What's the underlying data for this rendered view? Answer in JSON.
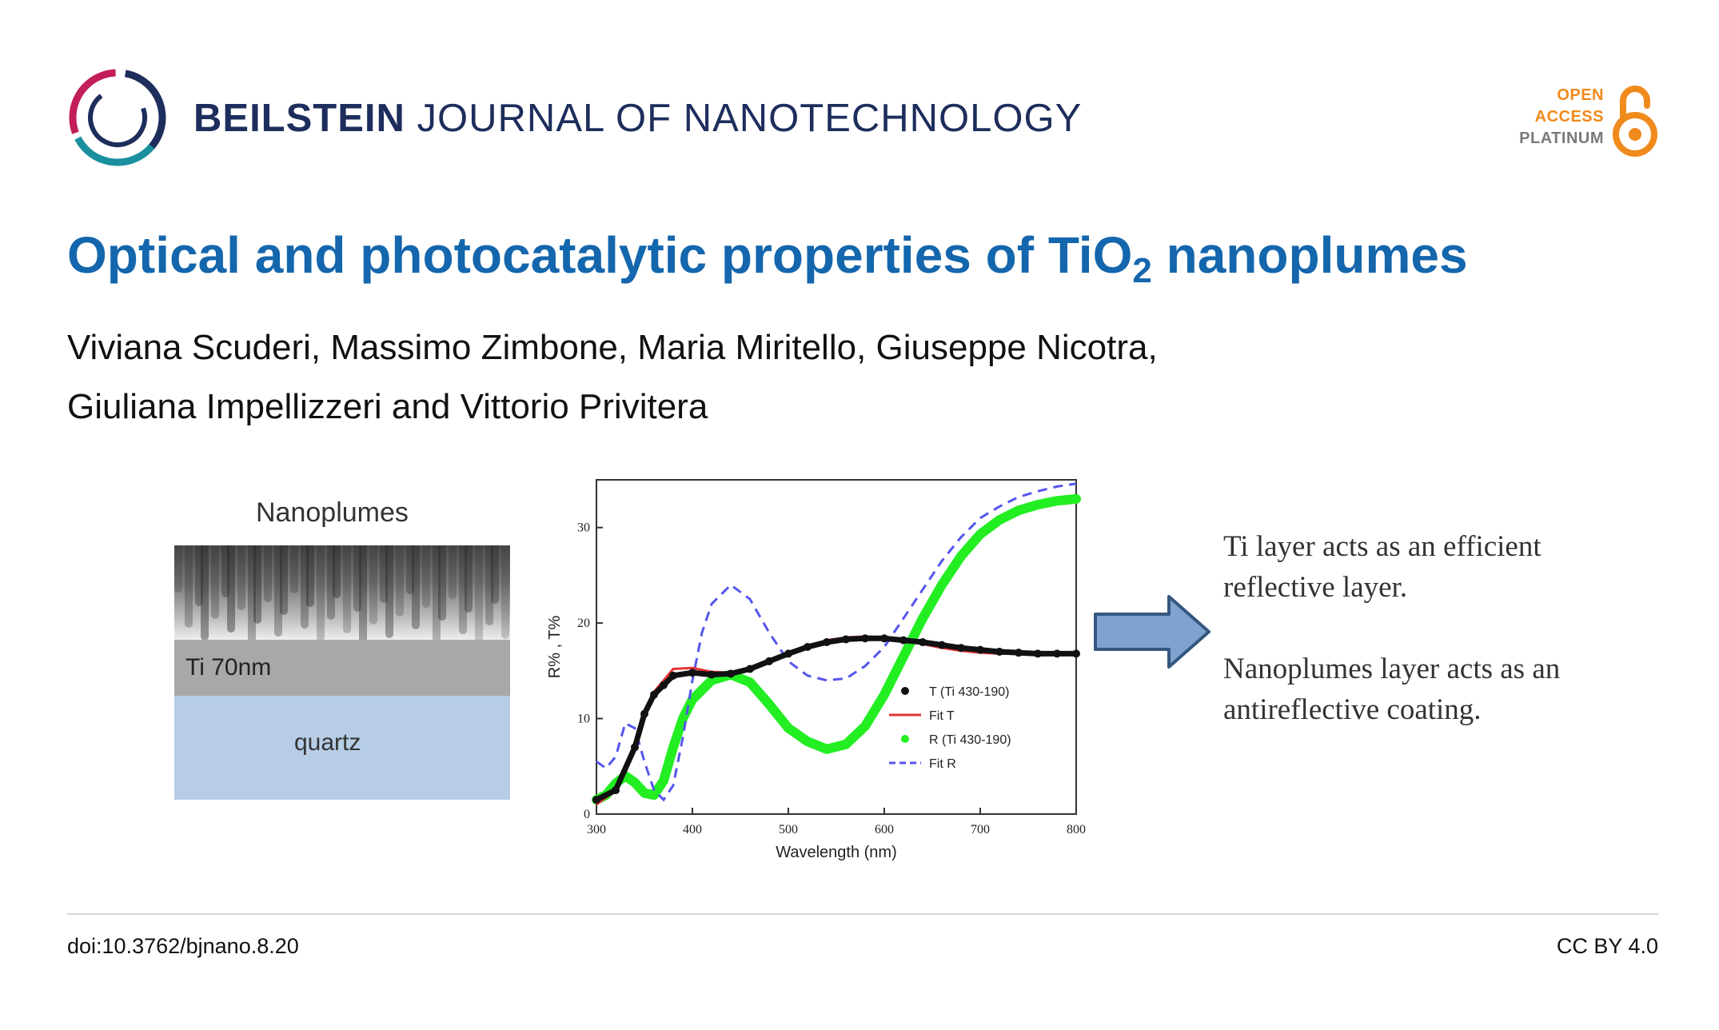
{
  "header": {
    "journal_bold": "BEILSTEIN",
    "journal_rest": "JOURNAL OF NANOTECHNOLOGY",
    "logo_icon": "beilstein-logo-icon",
    "open_access": {
      "line1": "OPEN",
      "line2": "ACCESS",
      "line3": "PLATINUM",
      "icon": "open-lock-icon",
      "color": "#f08a1c"
    }
  },
  "article": {
    "title_before": "Optical and photocatalytic properties of TiO",
    "title_sub": "2",
    "title_after": " nanoplumes",
    "authors_line1": "Viviana Scuderi, Massimo Zimbone, Maria Miritello, Giuseppe Nicotra,",
    "authors_line2": "Giuliana Impellizzeri and Vittorio Privitera",
    "title_color": "#1466ad"
  },
  "figure": {
    "nanoplumes_label": "Nanoplumes",
    "ti_label": "Ti 70nm",
    "quartz_label": "quartz",
    "note1": "Ti layer acts as an efficient reflective layer.",
    "note2": "Nanoplumes layer acts as an antireflective coating."
  },
  "chart_data": {
    "type": "line",
    "xlabel": "Wavelength (nm)",
    "ylabel": "R% , T%",
    "xlim": [
      300,
      800
    ],
    "ylim": [
      0,
      35
    ],
    "xticks": [
      "300",
      "400",
      "500",
      "600",
      "700",
      "800"
    ],
    "yticks": [
      "0",
      "10",
      "20",
      "30"
    ],
    "grid": false,
    "legend_position": "bottom-right",
    "series": [
      {
        "name": "T (Ti 430-190)",
        "style": "dots",
        "color": "#111111",
        "x": [
          300,
          320,
          340,
          350,
          360,
          370,
          380,
          400,
          420,
          440,
          460,
          480,
          500,
          520,
          540,
          560,
          580,
          600,
          620,
          640,
          660,
          680,
          700,
          720,
          740,
          760,
          780,
          800
        ],
        "y": [
          1.5,
          2.5,
          7,
          10.5,
          12.5,
          13.5,
          14.5,
          14.8,
          14.6,
          14.7,
          15.2,
          16,
          16.8,
          17.5,
          18,
          18.3,
          18.4,
          18.4,
          18.2,
          18,
          17.7,
          17.4,
          17.2,
          17,
          16.9,
          16.8,
          16.8,
          16.8
        ]
      },
      {
        "name": "Fit T",
        "style": "solid",
        "color": "#e53333",
        "x": [
          300,
          320,
          340,
          350,
          360,
          370,
          380,
          400,
          420,
          440,
          460,
          480,
          500,
          520,
          540,
          560,
          580,
          600,
          620,
          640,
          660,
          680,
          700,
          720,
          740,
          760,
          780,
          800
        ],
        "y": [
          1,
          2.5,
          7,
          10.5,
          12.8,
          14,
          15.2,
          15.3,
          14.9,
          14.8,
          15.2,
          15.9,
          16.8,
          17.6,
          18.2,
          18.5,
          18.6,
          18.5,
          18.2,
          17.8,
          17.4,
          17.1,
          16.9,
          16.8,
          16.8,
          16.8,
          16.8,
          16.8
        ]
      },
      {
        "name": "R (Ti 430-190)",
        "style": "thick",
        "color": "#22ee22",
        "x": [
          300,
          310,
          320,
          330,
          340,
          350,
          360,
          370,
          380,
          390,
          400,
          420,
          440,
          460,
          480,
          500,
          520,
          540,
          560,
          580,
          600,
          620,
          640,
          660,
          680,
          700,
          720,
          740,
          760,
          780,
          800
        ],
        "y": [
          1.5,
          2,
          3.2,
          4,
          3.3,
          2.2,
          2,
          3.5,
          7,
          10,
          12,
          14,
          14.6,
          13.8,
          11.5,
          9,
          7.6,
          6.8,
          7.3,
          9.2,
          12.5,
          16.5,
          20.5,
          24,
          27,
          29.3,
          30.8,
          31.8,
          32.4,
          32.8,
          33
        ]
      },
      {
        "name": "Fit R",
        "style": "dashed",
        "color": "#5555ee",
        "x": [
          300,
          310,
          320,
          330,
          340,
          350,
          360,
          370,
          380,
          390,
          400,
          410,
          420,
          440,
          460,
          480,
          500,
          520,
          540,
          560,
          580,
          600,
          620,
          640,
          660,
          680,
          700,
          720,
          740,
          760,
          780,
          800
        ],
        "y": [
          5.5,
          4.8,
          6,
          9.5,
          9,
          5.5,
          2.5,
          1.5,
          3,
          8,
          14,
          19,
          22,
          24,
          22.5,
          19,
          16,
          14.5,
          14,
          14.2,
          15.5,
          17.5,
          20.5,
          23.5,
          26.5,
          29,
          31,
          32.2,
          33.2,
          33.8,
          34.3,
          34.6
        ]
      }
    ]
  },
  "footer": {
    "doi": "doi:10.3762/bjnano.8.20",
    "license": "CC BY 4.0"
  }
}
